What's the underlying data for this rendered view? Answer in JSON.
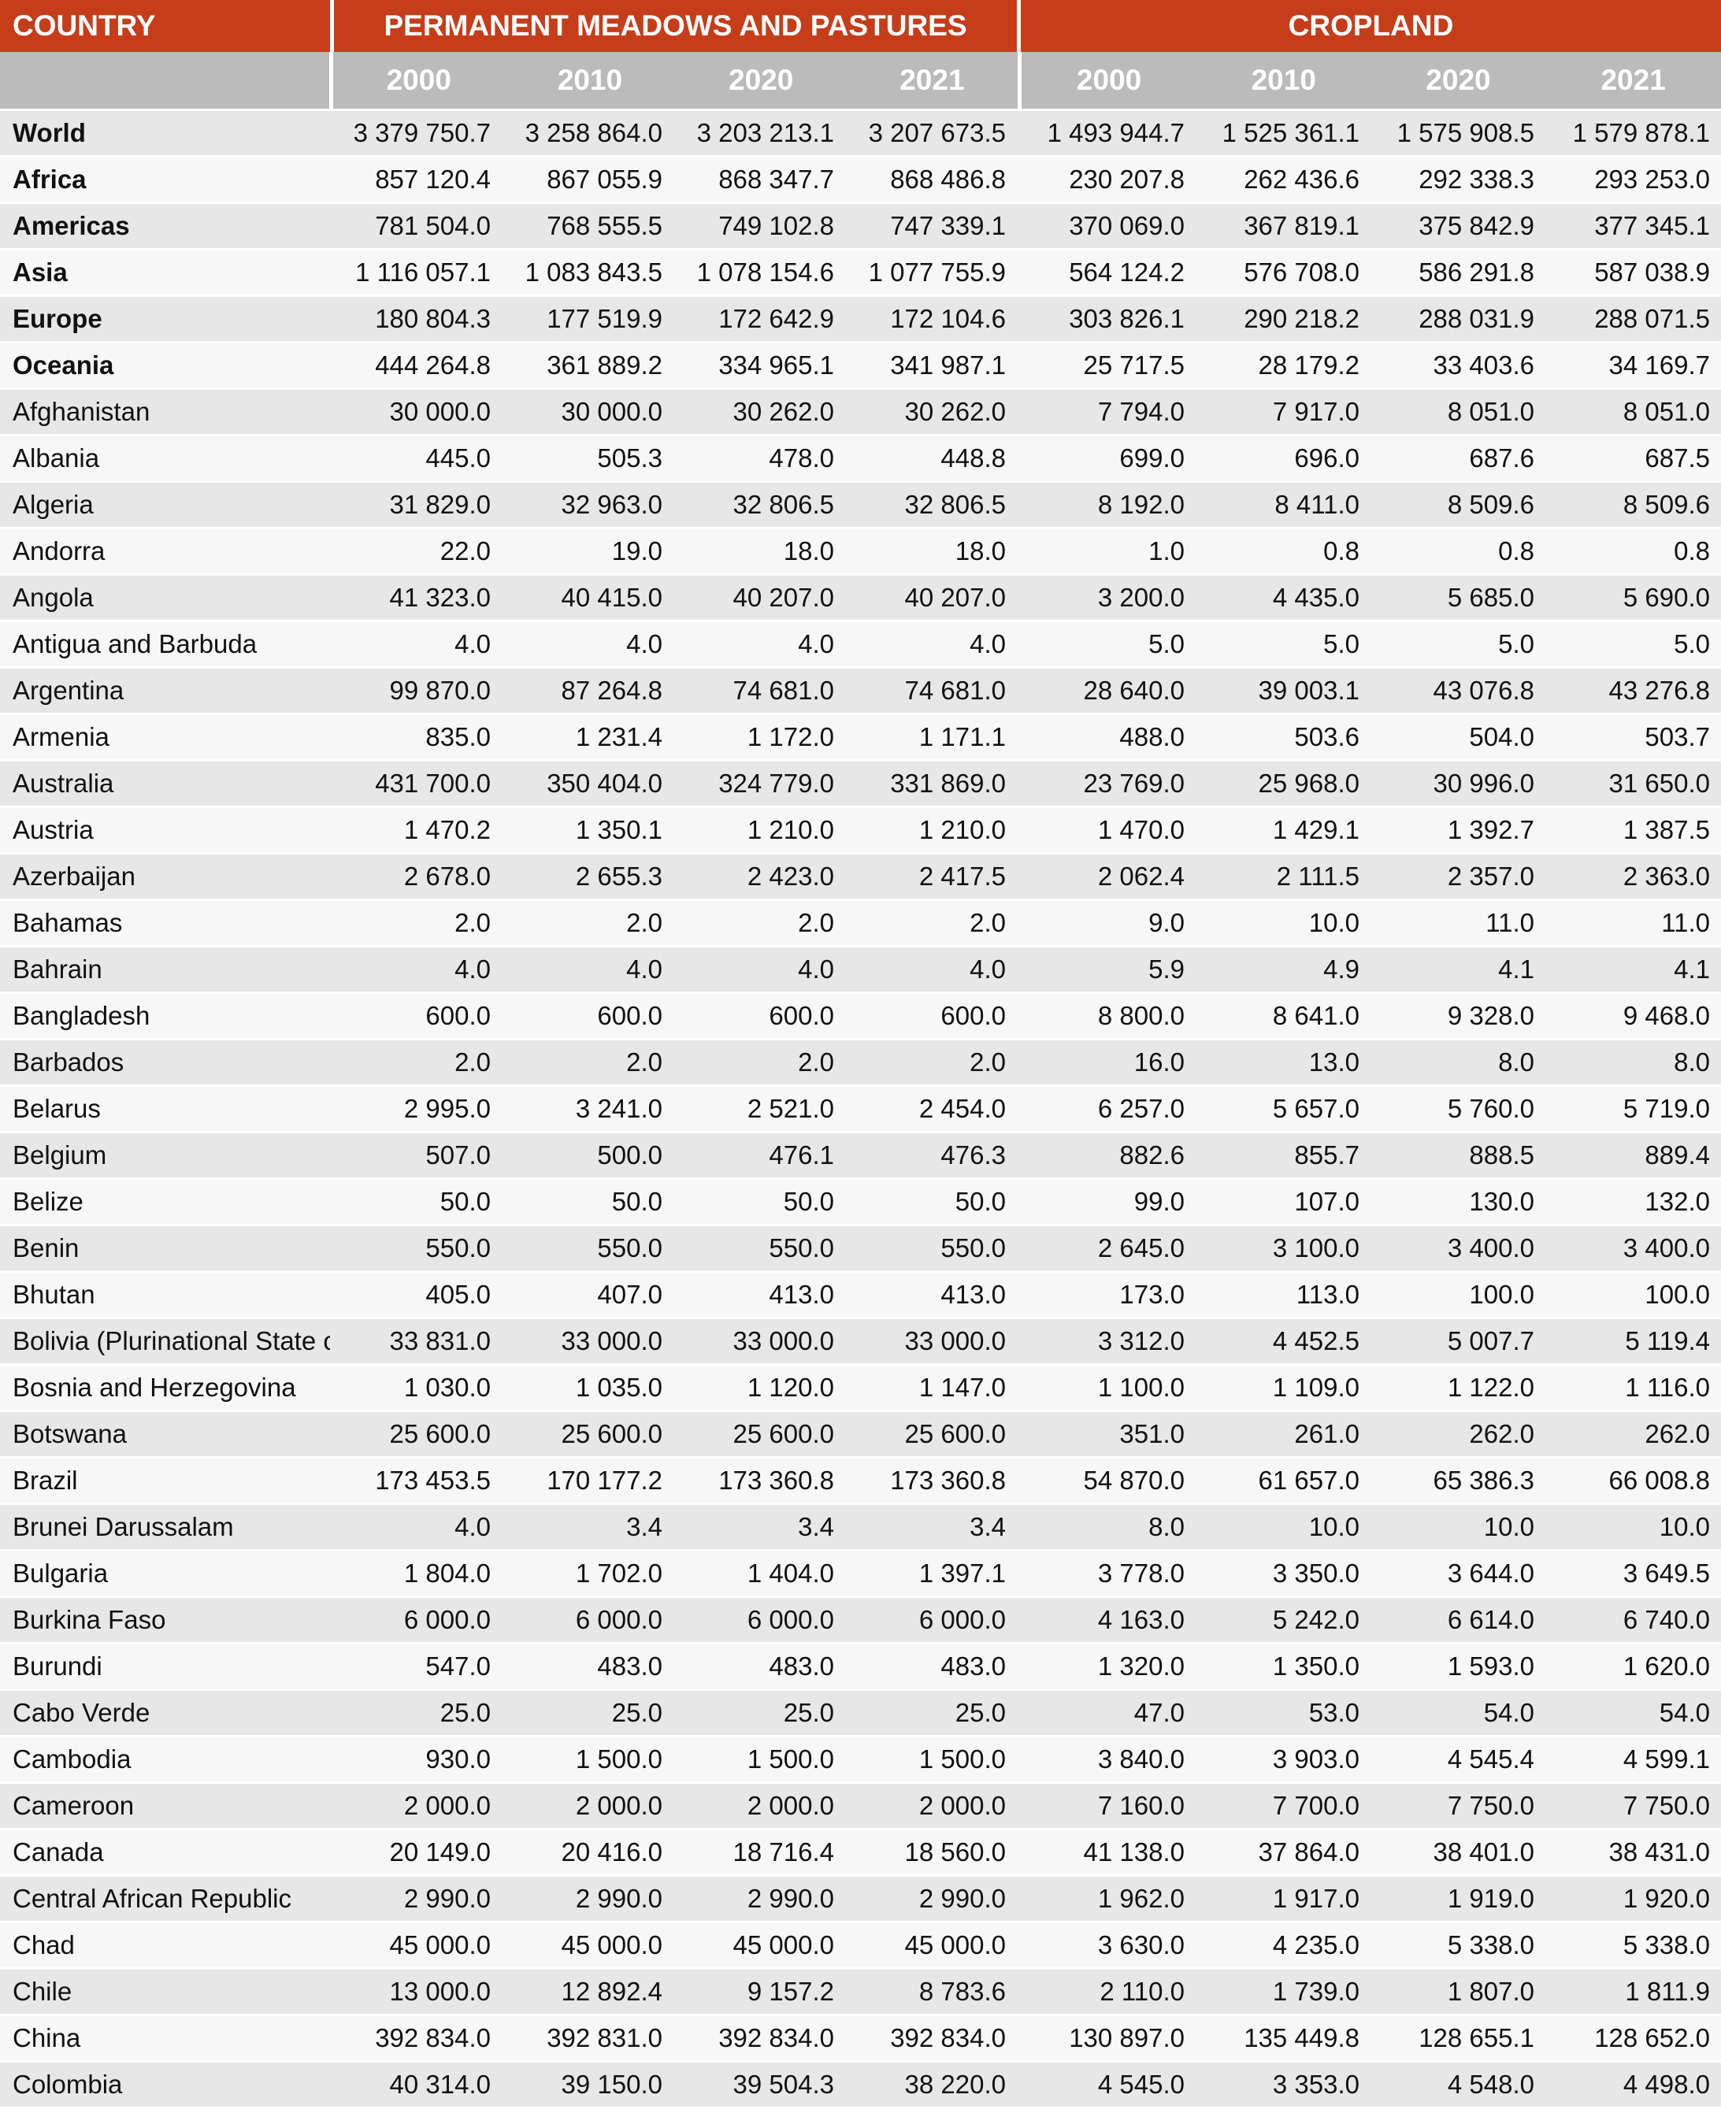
{
  "header": {
    "country": "COUNTRY",
    "groups": [
      {
        "label": "PERMANENT MEADOWS AND PASTURES",
        "years": [
          "2000",
          "2010",
          "2020",
          "2021"
        ]
      },
      {
        "label": "CROPLAND",
        "years": [
          "2000",
          "2010",
          "2020",
          "2021"
        ]
      }
    ]
  },
  "colors": {
    "header_red": "#c63d1a",
    "header_gray": "#bbbbbb",
    "row_odd": "#e7e7e7",
    "row_even": "#f7f7f7"
  },
  "rows": [
    {
      "name": "World",
      "aggregate": true,
      "pmp": [
        "3 379 750.7",
        "3 258 864.0",
        "3 203 213.1",
        "3 207 673.5"
      ],
      "cropland": [
        "1 493 944.7",
        "1 525 361.1",
        "1 575 908.5",
        "1 579 878.1"
      ]
    },
    {
      "name": "Africa",
      "aggregate": true,
      "pmp": [
        "857 120.4",
        "867 055.9",
        "868 347.7",
        "868 486.8"
      ],
      "cropland": [
        "230 207.8",
        "262 436.6",
        "292 338.3",
        "293 253.0"
      ]
    },
    {
      "name": "Americas",
      "aggregate": true,
      "pmp": [
        "781 504.0",
        "768 555.5",
        "749 102.8",
        "747 339.1"
      ],
      "cropland": [
        "370 069.0",
        "367 819.1",
        "375 842.9",
        "377 345.1"
      ]
    },
    {
      "name": "Asia",
      "aggregate": true,
      "pmp": [
        "1 116 057.1",
        "1 083 843.5",
        "1 078 154.6",
        "1 077 755.9"
      ],
      "cropland": [
        "564 124.2",
        "576 708.0",
        "586 291.8",
        "587 038.9"
      ]
    },
    {
      "name": "Europe",
      "aggregate": true,
      "pmp": [
        "180 804.3",
        "177 519.9",
        "172 642.9",
        "172 104.6"
      ],
      "cropland": [
        "303 826.1",
        "290 218.2",
        "288 031.9",
        "288 071.5"
      ]
    },
    {
      "name": "Oceania",
      "aggregate": true,
      "pmp": [
        "444 264.8",
        "361 889.2",
        "334 965.1",
        "341 987.1"
      ],
      "cropland": [
        "25 717.5",
        "28 179.2",
        "33 403.6",
        "34 169.7"
      ]
    },
    {
      "name": "Afghanistan",
      "aggregate": false,
      "pmp": [
        "30 000.0",
        "30 000.0",
        "30 262.0",
        "30 262.0"
      ],
      "cropland": [
        "7 794.0",
        "7 917.0",
        "8 051.0",
        "8 051.0"
      ]
    },
    {
      "name": "Albania",
      "aggregate": false,
      "pmp": [
        "445.0",
        "505.3",
        "478.0",
        "448.8"
      ],
      "cropland": [
        "699.0",
        "696.0",
        "687.6",
        "687.5"
      ]
    },
    {
      "name": "Algeria",
      "aggregate": false,
      "pmp": [
        "31 829.0",
        "32 963.0",
        "32 806.5",
        "32 806.5"
      ],
      "cropland": [
        "8 192.0",
        "8 411.0",
        "8 509.6",
        "8 509.6"
      ]
    },
    {
      "name": "Andorra",
      "aggregate": false,
      "pmp": [
        "22.0",
        "19.0",
        "18.0",
        "18.0"
      ],
      "cropland": [
        "1.0",
        "0.8",
        "0.8",
        "0.8"
      ]
    },
    {
      "name": "Angola",
      "aggregate": false,
      "pmp": [
        "41 323.0",
        "40 415.0",
        "40 207.0",
        "40 207.0"
      ],
      "cropland": [
        "3 200.0",
        "4 435.0",
        "5 685.0",
        "5 690.0"
      ]
    },
    {
      "name": "Antigua and Barbuda",
      "aggregate": false,
      "pmp": [
        "4.0",
        "4.0",
        "4.0",
        "4.0"
      ],
      "cropland": [
        "5.0",
        "5.0",
        "5.0",
        "5.0"
      ]
    },
    {
      "name": "Argentina",
      "aggregate": false,
      "pmp": [
        "99 870.0",
        "87 264.8",
        "74 681.0",
        "74 681.0"
      ],
      "cropland": [
        "28 640.0",
        "39 003.1",
        "43 076.8",
        "43 276.8"
      ]
    },
    {
      "name": "Armenia",
      "aggregate": false,
      "pmp": [
        "835.0",
        "1 231.4",
        "1 172.0",
        "1 171.1"
      ],
      "cropland": [
        "488.0",
        "503.6",
        "504.0",
        "503.7"
      ]
    },
    {
      "name": "Australia",
      "aggregate": false,
      "pmp": [
        "431 700.0",
        "350 404.0",
        "324 779.0",
        "331 869.0"
      ],
      "cropland": [
        "23 769.0",
        "25 968.0",
        "30 996.0",
        "31 650.0"
      ]
    },
    {
      "name": "Austria",
      "aggregate": false,
      "pmp": [
        "1 470.2",
        "1 350.1",
        "1 210.0",
        "1 210.0"
      ],
      "cropland": [
        "1 470.0",
        "1 429.1",
        "1 392.7",
        "1 387.5"
      ]
    },
    {
      "name": "Azerbaijan",
      "aggregate": false,
      "pmp": [
        "2 678.0",
        "2 655.3",
        "2 423.0",
        "2 417.5"
      ],
      "cropland": [
        "2 062.4",
        "2 111.5",
        "2 357.0",
        "2 363.0"
      ]
    },
    {
      "name": "Bahamas",
      "aggregate": false,
      "pmp": [
        "2.0",
        "2.0",
        "2.0",
        "2.0"
      ],
      "cropland": [
        "9.0",
        "10.0",
        "11.0",
        "11.0"
      ]
    },
    {
      "name": "Bahrain",
      "aggregate": false,
      "pmp": [
        "4.0",
        "4.0",
        "4.0",
        "4.0"
      ],
      "cropland": [
        "5.9",
        "4.9",
        "4.1",
        "4.1"
      ]
    },
    {
      "name": "Bangladesh",
      "aggregate": false,
      "pmp": [
        "600.0",
        "600.0",
        "600.0",
        "600.0"
      ],
      "cropland": [
        "8 800.0",
        "8 641.0",
        "9 328.0",
        "9 468.0"
      ]
    },
    {
      "name": "Barbados",
      "aggregate": false,
      "pmp": [
        "2.0",
        "2.0",
        "2.0",
        "2.0"
      ],
      "cropland": [
        "16.0",
        "13.0",
        "8.0",
        "8.0"
      ]
    },
    {
      "name": "Belarus",
      "aggregate": false,
      "pmp": [
        "2 995.0",
        "3 241.0",
        "2 521.0",
        "2 454.0"
      ],
      "cropland": [
        "6 257.0",
        "5 657.0",
        "5 760.0",
        "5 719.0"
      ]
    },
    {
      "name": "Belgium",
      "aggregate": false,
      "pmp": [
        "507.0",
        "500.0",
        "476.1",
        "476.3"
      ],
      "cropland": [
        "882.6",
        "855.7",
        "888.5",
        "889.4"
      ]
    },
    {
      "name": "Belize",
      "aggregate": false,
      "pmp": [
        "50.0",
        "50.0",
        "50.0",
        "50.0"
      ],
      "cropland": [
        "99.0",
        "107.0",
        "130.0",
        "132.0"
      ]
    },
    {
      "name": "Benin",
      "aggregate": false,
      "pmp": [
        "550.0",
        "550.0",
        "550.0",
        "550.0"
      ],
      "cropland": [
        "2 645.0",
        "3 100.0",
        "3 400.0",
        "3 400.0"
      ]
    },
    {
      "name": "Bhutan",
      "aggregate": false,
      "pmp": [
        "405.0",
        "407.0",
        "413.0",
        "413.0"
      ],
      "cropland": [
        "173.0",
        "113.0",
        "100.0",
        "100.0"
      ]
    },
    {
      "name": "Bolivia (Plurinational State of)",
      "aggregate": false,
      "pmp": [
        "33 831.0",
        "33 000.0",
        "33 000.0",
        "33 000.0"
      ],
      "cropland": [
        "3 312.0",
        "4 452.5",
        "5 007.7",
        "5 119.4"
      ]
    },
    {
      "name": "Bosnia and Herzegovina",
      "aggregate": false,
      "pmp": [
        "1 030.0",
        "1 035.0",
        "1 120.0",
        "1 147.0"
      ],
      "cropland": [
        "1 100.0",
        "1 109.0",
        "1 122.0",
        "1 116.0"
      ]
    },
    {
      "name": "Botswana",
      "aggregate": false,
      "pmp": [
        "25 600.0",
        "25 600.0",
        "25 600.0",
        "25 600.0"
      ],
      "cropland": [
        "351.0",
        "261.0",
        "262.0",
        "262.0"
      ]
    },
    {
      "name": "Brazil",
      "aggregate": false,
      "pmp": [
        "173 453.5",
        "170 177.2",
        "173 360.8",
        "173 360.8"
      ],
      "cropland": [
        "54 870.0",
        "61 657.0",
        "65 386.3",
        "66 008.8"
      ]
    },
    {
      "name": "Brunei Darussalam",
      "aggregate": false,
      "pmp": [
        "4.0",
        "3.4",
        "3.4",
        "3.4"
      ],
      "cropland": [
        "8.0",
        "10.0",
        "10.0",
        "10.0"
      ]
    },
    {
      "name": "Bulgaria",
      "aggregate": false,
      "pmp": [
        "1 804.0",
        "1 702.0",
        "1 404.0",
        "1 397.1"
      ],
      "cropland": [
        "3 778.0",
        "3 350.0",
        "3 644.0",
        "3 649.5"
      ]
    },
    {
      "name": "Burkina Faso",
      "aggregate": false,
      "pmp": [
        "6 000.0",
        "6 000.0",
        "6 000.0",
        "6 000.0"
      ],
      "cropland": [
        "4 163.0",
        "5 242.0",
        "6 614.0",
        "6 740.0"
      ]
    },
    {
      "name": "Burundi",
      "aggregate": false,
      "pmp": [
        "547.0",
        "483.0",
        "483.0",
        "483.0"
      ],
      "cropland": [
        "1 320.0",
        "1 350.0",
        "1 593.0",
        "1 620.0"
      ]
    },
    {
      "name": "Cabo Verde",
      "aggregate": false,
      "pmp": [
        "25.0",
        "25.0",
        "25.0",
        "25.0"
      ],
      "cropland": [
        "47.0",
        "53.0",
        "54.0",
        "54.0"
      ]
    },
    {
      "name": "Cambodia",
      "aggregate": false,
      "pmp": [
        "930.0",
        "1 500.0",
        "1 500.0",
        "1 500.0"
      ],
      "cropland": [
        "3 840.0",
        "3 903.0",
        "4 545.4",
        "4 599.1"
      ]
    },
    {
      "name": "Cameroon",
      "aggregate": false,
      "pmp": [
        "2 000.0",
        "2 000.0",
        "2 000.0",
        "2 000.0"
      ],
      "cropland": [
        "7 160.0",
        "7 700.0",
        "7 750.0",
        "7 750.0"
      ]
    },
    {
      "name": "Canada",
      "aggregate": false,
      "pmp": [
        "20 149.0",
        "20 416.0",
        "18 716.4",
        "18 560.0"
      ],
      "cropland": [
        "41 138.0",
        "37 864.0",
        "38 401.0",
        "38 431.0"
      ]
    },
    {
      "name": "Central African Republic",
      "aggregate": false,
      "pmp": [
        "2 990.0",
        "2 990.0",
        "2 990.0",
        "2 990.0"
      ],
      "cropland": [
        "1 962.0",
        "1 917.0",
        "1 919.0",
        "1 920.0"
      ]
    },
    {
      "name": "Chad",
      "aggregate": false,
      "pmp": [
        "45 000.0",
        "45 000.0",
        "45 000.0",
        "45 000.0"
      ],
      "cropland": [
        "3 630.0",
        "4 235.0",
        "5 338.0",
        "5 338.0"
      ]
    },
    {
      "name": "Chile",
      "aggregate": false,
      "pmp": [
        "13 000.0",
        "12 892.4",
        "9 157.2",
        "8 783.6"
      ],
      "cropland": [
        "2 110.0",
        "1 739.0",
        "1 807.0",
        "1 811.9"
      ]
    },
    {
      "name": "China",
      "aggregate": false,
      "pmp": [
        "392 834.0",
        "392 831.0",
        "392 834.0",
        "392 834.0"
      ],
      "cropland": [
        "130 897.0",
        "135 449.8",
        "128 655.1",
        "128 652.0"
      ]
    },
    {
      "name": "Colombia",
      "aggregate": false,
      "pmp": [
        "40 314.0",
        "39 150.0",
        "39 504.3",
        "38 220.0"
      ],
      "cropland": [
        "4 545.0",
        "3 353.0",
        "4 548.0",
        "4 498.0"
      ]
    }
  ]
}
